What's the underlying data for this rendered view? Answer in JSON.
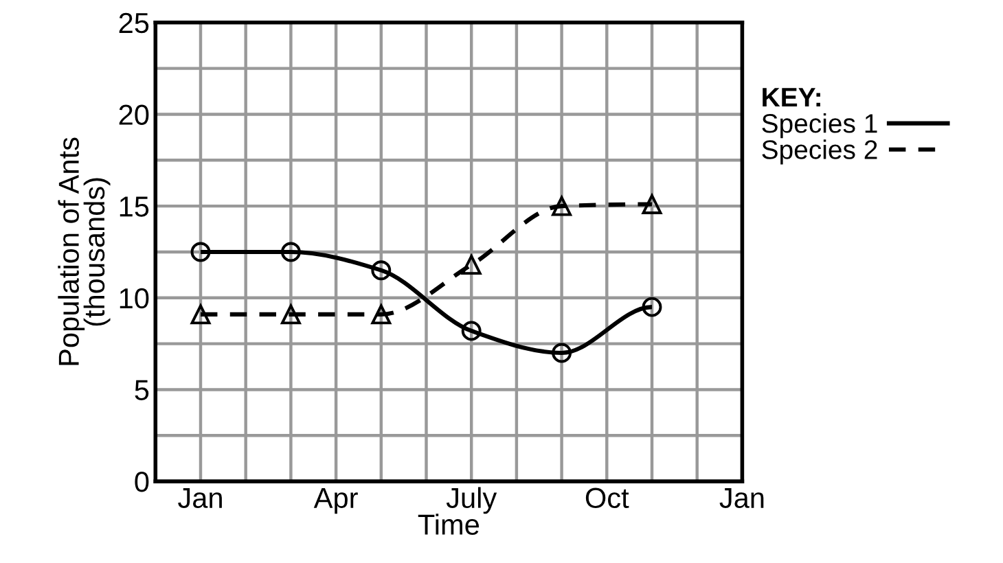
{
  "chart_data": {
    "type": "line",
    "xlabel": "Time",
    "ylabel": "Population of Ants\n(thousands)",
    "legend_title": "KEY:",
    "legend": "top right",
    "categories": [
      "Jan",
      null,
      null,
      "Apr",
      null,
      null,
      "July",
      null,
      null,
      "Oct",
      null,
      null,
      "Jan"
    ],
    "ylim": [
      0,
      25
    ],
    "yticks": [
      0,
      {
        "value": 2.5,
        "label": null
      },
      5,
      {
        "value": 7.5,
        "label": null
      },
      10,
      {
        "value": 12.5,
        "label": null
      },
      15,
      {
        "value": 17.5,
        "label": null
      },
      20,
      {
        "value": 22.5,
        "label": null
      },
      25
    ],
    "grid": true,
    "series": [
      {
        "name": "Species 1",
        "color": "#000000",
        "marker": "circle",
        "line_style": "solid",
        "values": [
          12.5,
          null,
          12.5,
          null,
          11.5,
          null,
          8.2,
          null,
          7.0,
          null,
          9.5,
          null,
          null
        ]
      },
      {
        "name": "Species 2",
        "color": "#000000",
        "marker": "triangle",
        "line_style": "dashed",
        "values": [
          9.1,
          null,
          9.1,
          null,
          9.1,
          null,
          11.8,
          null,
          15.0,
          null,
          15.1,
          null,
          null
        ]
      }
    ]
  }
}
